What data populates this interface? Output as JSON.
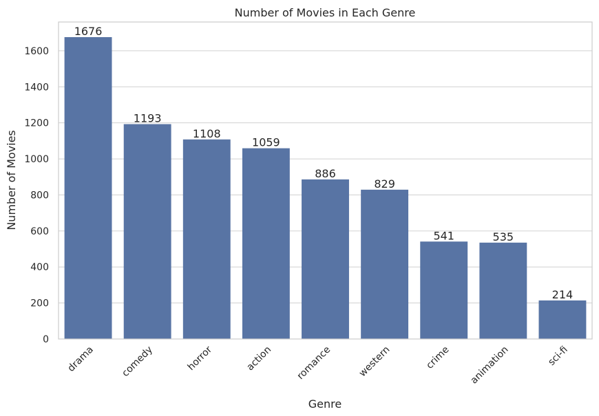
{
  "chart_data": {
    "type": "bar",
    "title": "Number of Movies in Each Genre",
    "xlabel": "Genre",
    "ylabel": "Number of Movies",
    "categories": [
      "drama",
      "comedy",
      "horror",
      "action",
      "romance",
      "western",
      "crime",
      "animation",
      "sci-fi"
    ],
    "values": [
      1676,
      1193,
      1108,
      1059,
      886,
      829,
      541,
      535,
      214
    ],
    "data_labels": [
      "1676",
      "1193",
      "1108",
      "1059",
      "886",
      "829",
      "541",
      "535",
      "214"
    ],
    "ylim": [
      0,
      1760
    ],
    "yticks": [
      0,
      200,
      400,
      600,
      800,
      1000,
      1200,
      1400,
      1600
    ],
    "ytick_labels": [
      "0",
      "200",
      "400",
      "600",
      "800",
      "1000",
      "1200",
      "1400",
      "1600"
    ],
    "grid": "horizontal",
    "bar_color": "#5874a4",
    "gridline_color": "#d0d0d0",
    "spine_color": "#cccccc"
  }
}
